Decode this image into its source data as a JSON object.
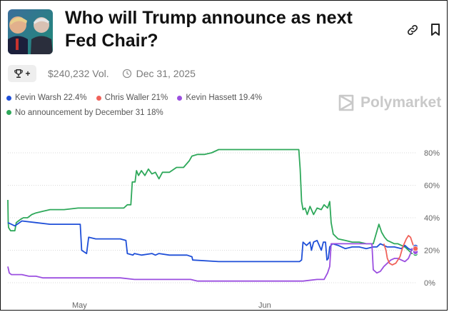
{
  "header": {
    "title": "Who will Trump announce as next Fed Chair?",
    "volume": "$240,232 Vol.",
    "end_date": "Dec 31, 2025",
    "icons": [
      "link-icon",
      "bookmark-icon",
      "trophy-icon",
      "clock-icon"
    ]
  },
  "brand": {
    "name": "Polymarket"
  },
  "legend": [
    {
      "label": "Kevin Warsh 22.4%",
      "color": "#1f4fd8"
    },
    {
      "label": "Chris Waller 21%",
      "color": "#f0625a"
    },
    {
      "label": "Kevin Hassett 19.4%",
      "color": "#9b4fe0"
    },
    {
      "label": "No announcement by December 31 18%",
      "color": "#2ea85a"
    }
  ],
  "chart_data": {
    "type": "line",
    "x_tick_labels": [
      "May",
      "Jun"
    ],
    "y_tick_labels": [
      "80%",
      "60%",
      "40%",
      "20%",
      "0%"
    ],
    "ylim": [
      0,
      80
    ],
    "grid": true,
    "series": [
      {
        "name": "No announcement by December 31",
        "color": "#2ea85a",
        "points": [
          [
            0,
            51
          ],
          [
            0.5,
            37
          ],
          [
            1,
            34
          ],
          [
            4,
            32
          ],
          [
            10,
            32
          ],
          [
            12,
            37
          ],
          [
            15,
            38
          ],
          [
            18,
            39
          ],
          [
            22,
            40
          ],
          [
            28,
            40
          ],
          [
            34,
            42
          ],
          [
            40,
            43
          ],
          [
            50,
            44
          ],
          [
            60,
            45
          ],
          [
            70,
            45
          ],
          [
            80,
            45
          ],
          [
            100,
            46
          ],
          [
            120,
            46
          ],
          [
            150,
            46
          ],
          [
            165,
            46
          ],
          [
            170,
            48
          ],
          [
            175,
            48
          ],
          [
            177,
            62
          ],
          [
            181,
            62
          ],
          [
            183,
            69
          ],
          [
            186,
            66
          ],
          [
            190,
            69
          ],
          [
            195,
            66
          ],
          [
            200,
            70
          ],
          [
            205,
            67
          ],
          [
            210,
            68
          ],
          [
            215,
            64
          ],
          [
            220,
            68
          ],
          [
            230,
            68
          ],
          [
            240,
            71
          ],
          [
            250,
            71
          ],
          [
            258,
            75
          ],
          [
            262,
            78
          ],
          [
            270,
            79
          ],
          [
            280,
            79
          ],
          [
            290,
            80
          ],
          [
            300,
            82
          ],
          [
            310,
            82
          ],
          [
            330,
            82
          ],
          [
            360,
            82
          ],
          [
            390,
            82
          ],
          [
            410,
            82
          ],
          [
            414,
            82
          ],
          [
            416,
            70
          ],
          [
            418,
            50
          ],
          [
            420,
            45
          ],
          [
            423,
            46
          ],
          [
            426,
            42
          ],
          [
            430,
            47
          ],
          [
            435,
            42
          ],
          [
            440,
            46
          ],
          [
            446,
            45
          ],
          [
            450,
            48
          ],
          [
            455,
            46
          ],
          [
            458,
            50
          ],
          [
            460,
            37
          ],
          [
            463,
            30
          ],
          [
            470,
            27
          ],
          [
            480,
            26
          ],
          [
            490,
            25
          ],
          [
            500,
            25
          ],
          [
            510,
            24
          ],
          [
            520,
            24
          ],
          [
            528,
            36
          ],
          [
            532,
            31
          ],
          [
            536,
            28
          ],
          [
            540,
            26
          ],
          [
            545,
            25
          ],
          [
            550,
            24
          ],
          [
            555,
            24
          ],
          [
            560,
            23
          ],
          [
            565,
            22
          ],
          [
            570,
            20
          ],
          [
            575,
            18
          ],
          [
            578,
            18
          ],
          [
            580,
            18
          ]
        ]
      },
      {
        "name": "Kevin Warsh",
        "color": "#1f4fd8",
        "points": [
          [
            0,
            37
          ],
          [
            5,
            36
          ],
          [
            10,
            35
          ],
          [
            20,
            38
          ],
          [
            40,
            37
          ],
          [
            60,
            36
          ],
          [
            80,
            36
          ],
          [
            103,
            36
          ],
          [
            105,
            20
          ],
          [
            112,
            18
          ],
          [
            115,
            28
          ],
          [
            125,
            27
          ],
          [
            160,
            27
          ],
          [
            168,
            26
          ],
          [
            170,
            18
          ],
          [
            178,
            17
          ],
          [
            180,
            18
          ],
          [
            190,
            17
          ],
          [
            205,
            18
          ],
          [
            210,
            17
          ],
          [
            215,
            18
          ],
          [
            230,
            17
          ],
          [
            245,
            17
          ],
          [
            255,
            17
          ],
          [
            262,
            16
          ],
          [
            263,
            14
          ],
          [
            300,
            13
          ],
          [
            330,
            13
          ],
          [
            360,
            13
          ],
          [
            370,
            13
          ],
          [
            390,
            13
          ],
          [
            415,
            13
          ],
          [
            418,
            14
          ],
          [
            420,
            25
          ],
          [
            425,
            23
          ],
          [
            430,
            25
          ],
          [
            432,
            20
          ],
          [
            435,
            25
          ],
          [
            440,
            26
          ],
          [
            444,
            22
          ],
          [
            446,
            20
          ],
          [
            449,
            25
          ],
          [
            452,
            25
          ],
          [
            454,
            14
          ],
          [
            456,
            15
          ],
          [
            458,
            22
          ],
          [
            462,
            24
          ],
          [
            470,
            23
          ],
          [
            480,
            21
          ],
          [
            490,
            22
          ],
          [
            500,
            22
          ],
          [
            510,
            21
          ],
          [
            520,
            22
          ],
          [
            525,
            22
          ],
          [
            530,
            24
          ],
          [
            540,
            22
          ],
          [
            550,
            22
          ],
          [
            560,
            21
          ],
          [
            565,
            23
          ],
          [
            570,
            21
          ],
          [
            575,
            20
          ],
          [
            578,
            22
          ],
          [
            580,
            22
          ]
        ]
      },
      {
        "name": "Kevin Hassett",
        "color": "#9b4fe0",
        "points": [
          [
            0,
            10
          ],
          [
            2,
            6
          ],
          [
            5,
            5
          ],
          [
            10,
            5
          ],
          [
            20,
            5
          ],
          [
            30,
            4
          ],
          [
            40,
            4
          ],
          [
            50,
            3
          ],
          [
            80,
            3
          ],
          [
            110,
            3
          ],
          [
            140,
            3
          ],
          [
            160,
            3
          ],
          [
            180,
            2
          ],
          [
            200,
            2
          ],
          [
            240,
            2
          ],
          [
            260,
            2
          ],
          [
            270,
            1
          ],
          [
            300,
            1
          ],
          [
            330,
            1
          ],
          [
            360,
            1
          ],
          [
            390,
            1
          ],
          [
            420,
            1
          ],
          [
            440,
            2
          ],
          [
            450,
            2
          ],
          [
            455,
            6
          ],
          [
            458,
            10
          ],
          [
            460,
            24
          ],
          [
            470,
            24
          ],
          [
            480,
            24
          ],
          [
            490,
            24
          ],
          [
            500,
            24
          ],
          [
            510,
            24
          ],
          [
            518,
            24
          ],
          [
            520,
            8
          ],
          [
            525,
            6
          ],
          [
            530,
            7
          ],
          [
            535,
            10
          ],
          [
            540,
            12
          ],
          [
            545,
            14
          ],
          [
            550,
            15
          ],
          [
            555,
            15
          ],
          [
            560,
            14
          ],
          [
            565,
            13
          ],
          [
            570,
            15
          ],
          [
            573,
            18
          ],
          [
            575,
            21
          ],
          [
            578,
            20
          ],
          [
            580,
            19
          ]
        ]
      },
      {
        "name": "Chris Waller",
        "color": "#f0625a",
        "points": [
          [
            535,
            24
          ],
          [
            538,
            20
          ],
          [
            540,
            15
          ],
          [
            543,
            12
          ],
          [
            547,
            11
          ],
          [
            552,
            12
          ],
          [
            558,
            16
          ],
          [
            562,
            22
          ],
          [
            567,
            27
          ],
          [
            570,
            29
          ],
          [
            573,
            28
          ],
          [
            576,
            24
          ],
          [
            578,
            22
          ],
          [
            580,
            21
          ]
        ]
      }
    ]
  }
}
